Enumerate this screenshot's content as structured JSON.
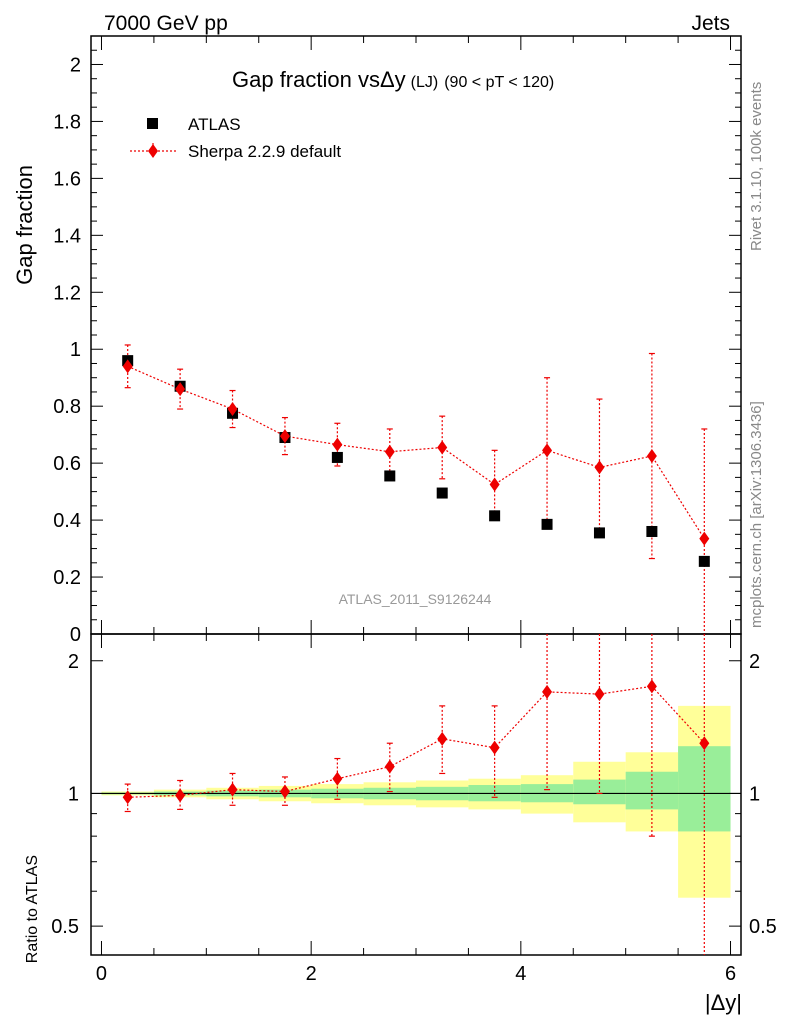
{
  "header": {
    "left": "7000 GeV pp",
    "right": "Jets"
  },
  "side_labels": {
    "rivet": "Rivet 3.1.10,  100k events",
    "mcplots": "mcplots.cern.ch [arXiv:1306.3436]"
  },
  "chart_data": [
    {
      "type": "scatter",
      "title_main": "Gap fraction vs",
      "title_symbol": "Δy",
      "title_small": "(LJ)",
      "title_range": "(90 < pT < 120)",
      "watermark": "ATLAS_2011_S9126244",
      "ylabel": "Gap fraction",
      "xlim": [
        -0.1,
        6.1
      ],
      "ylim": [
        0,
        2.1
      ],
      "yticks": [
        0,
        0.2,
        0.4,
        0.6,
        0.8,
        1,
        1.2,
        1.4,
        1.6,
        1.8,
        2
      ],
      "ytick_labels": [
        "0",
        "0.2",
        "0.4",
        "0.6",
        "0.8",
        "1",
        "1.2",
        "1.4",
        "1.6",
        "1.8",
        "2"
      ],
      "legend": [
        "ATLAS",
        "Sherpa 2.2.9 default"
      ],
      "legend_position": "top-left",
      "series": [
        {
          "name": "ATLAS",
          "marker": "square",
          "color": "#000000",
          "x": [
            0.25,
            0.75,
            1.25,
            1.75,
            2.25,
            2.75,
            3.25,
            3.75,
            4.25,
            4.75,
            5.25,
            5.75
          ],
          "y": [
            0.96,
            0.87,
            0.775,
            0.69,
            0.62,
            0.555,
            0.495,
            0.415,
            0.385,
            0.355,
            0.36,
            0.255
          ]
        },
        {
          "name": "Sherpa 2.2.9 default",
          "marker": "diamond",
          "color": "#ee0000",
          "x": [
            0.25,
            0.75,
            1.25,
            1.75,
            2.25,
            2.75,
            3.25,
            3.75,
            4.25,
            4.75,
            5.25,
            5.75
          ],
          "y": [
            0.94,
            0.86,
            0.79,
            0.695,
            0.665,
            0.64,
            0.655,
            0.525,
            0.645,
            0.585,
            0.625,
            0.335
          ],
          "err_up": [
            0.075,
            0.07,
            0.065,
            0.065,
            0.075,
            0.08,
            0.11,
            0.12,
            0.255,
            0.24,
            0.36,
            0.385
          ],
          "err_down": [
            0.075,
            0.07,
            0.065,
            0.065,
            0.075,
            0.08,
            0.11,
            0.12,
            0.255,
            0.24,
            0.36,
            0.385
          ]
        }
      ]
    },
    {
      "type": "scatter",
      "ylabel": "Ratio to ATLAS",
      "xlabel": "|Δy|",
      "scale": "log",
      "xlim": [
        -0.1,
        6.1
      ],
      "ylim": [
        0.43,
        2.3
      ],
      "xticks": [
        0,
        2,
        4,
        6
      ],
      "xtick_labels": [
        "0",
        "2",
        "4",
        "6"
      ],
      "yticks": [
        0.5,
        1,
        2
      ],
      "ytick_labels": [
        "0.5",
        "1",
        "2"
      ],
      "bands": {
        "x_edges": [
          0,
          0.5,
          1,
          1.5,
          2,
          2.5,
          3,
          3.5,
          4,
          4.5,
          5,
          5.5,
          6
        ],
        "inner_color": "#99ee99",
        "outer_color": "#ffff99",
        "inner_low": [
          0.995,
          0.99,
          0.985,
          0.98,
          0.975,
          0.97,
          0.965,
          0.96,
          0.955,
          0.945,
          0.92,
          0.82
        ],
        "inner_high": [
          1.005,
          1.01,
          1.015,
          1.02,
          1.025,
          1.03,
          1.035,
          1.045,
          1.05,
          1.075,
          1.12,
          1.28
        ],
        "outer_low": [
          0.99,
          0.98,
          0.97,
          0.96,
          0.95,
          0.94,
          0.93,
          0.92,
          0.9,
          0.86,
          0.82,
          0.58
        ],
        "outer_high": [
          1.01,
          1.02,
          1.03,
          1.04,
          1.05,
          1.06,
          1.07,
          1.08,
          1.1,
          1.18,
          1.24,
          1.58
        ]
      },
      "series": [
        {
          "name": "Sherpa 2.2.9 default",
          "marker": "diamond",
          "color": "#ee0000",
          "x": [
            0.25,
            0.75,
            1.25,
            1.75,
            2.25,
            2.75,
            3.25,
            3.75,
            4.25,
            4.75,
            5.25,
            5.75
          ],
          "y": [
            0.98,
            0.99,
            1.02,
            1.01,
            1.08,
            1.15,
            1.33,
            1.27,
            1.7,
            1.68,
            1.75,
            1.3
          ],
          "y_low": [
            0.91,
            0.92,
            0.94,
            0.94,
            0.97,
            1.01,
            1.11,
            0.98,
            1.02,
            1.0,
            0.8,
            0.43
          ],
          "y_high": [
            1.05,
            1.07,
            1.11,
            1.09,
            1.2,
            1.3,
            1.58,
            1.58,
            2.3,
            2.3,
            2.3,
            2.3
          ]
        }
      ]
    }
  ]
}
